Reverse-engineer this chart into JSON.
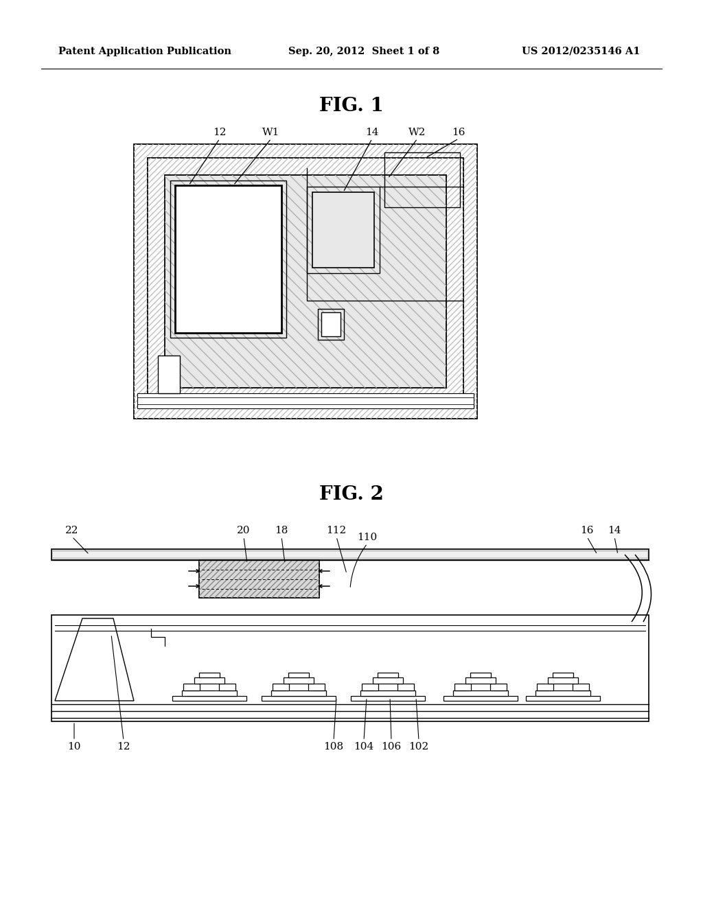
{
  "header_left": "Patent Application Publication",
  "header_center": "Sep. 20, 2012  Sheet 1 of 8",
  "header_right": "US 2012/0235146 A1",
  "fig1_title": "FIG. 1",
  "fig2_title": "FIG. 2",
  "bg_color": "#ffffff"
}
